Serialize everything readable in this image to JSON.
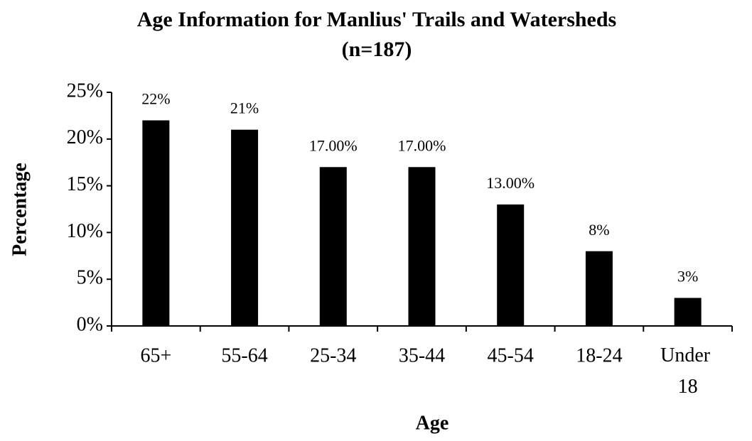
{
  "chart_data": {
    "type": "bar",
    "title": "Age Information for Manlius' Trails and Watersheds",
    "subtitle": "(n=187)",
    "x_label": "Age",
    "y_label": "Percentage",
    "categories": [
      "65+",
      "55-64",
      "25-34",
      "35-44",
      "45-54",
      "18-24",
      "Under 18"
    ],
    "values": [
      22,
      21,
      17,
      17,
      13,
      8,
      3
    ],
    "value_labels": [
      "22%",
      "21%",
      "17.00%",
      "17.00%",
      "13.00%",
      "8%",
      "3%"
    ],
    "color": "#000000",
    "ylim": [
      0,
      25
    ],
    "yticks": [
      {
        "value": 0,
        "label": "0%"
      },
      {
        "value": 5,
        "label": "5%"
      },
      {
        "value": 10,
        "label": "10%"
      },
      {
        "value": 15,
        "label": "15%"
      },
      {
        "value": 20,
        "label": "20%"
      },
      {
        "value": 25,
        "label": "25%"
      }
    ],
    "grid": false
  }
}
